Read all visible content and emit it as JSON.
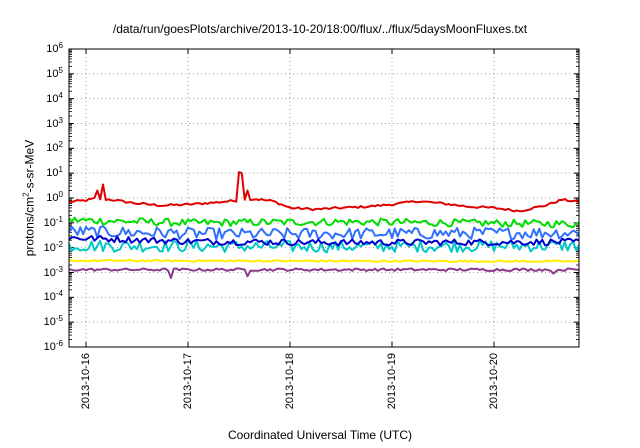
{
  "chart_data": {
    "type": "line",
    "title": "/data/run/goesPlots/archive/2013-10-20/18:00/flux/../flux/5daysMoonFluxes.txt",
    "xlabel": "Coordinated Universal Time (UTC)",
    "ylabel_prefix": "protons/cm",
    "ylabel_sup": "2",
    "ylabel_suffix": "-s-sr-MeV",
    "y_scale": "log",
    "ylim": [
      1e-06,
      1000000.0
    ],
    "xlim": [
      "2013-10-15T20:00",
      "2013-10-20T20:00"
    ],
    "grid": true,
    "legend": "none",
    "y_ticks": [
      {
        "base": "10",
        "exp": "-6",
        "value": 1e-06
      },
      {
        "base": "10",
        "exp": "-5",
        "value": 1e-05
      },
      {
        "base": "10",
        "exp": "-4",
        "value": 0.0001
      },
      {
        "base": "10",
        "exp": "-3",
        "value": 0.001
      },
      {
        "base": "10",
        "exp": "-2",
        "value": 0.01
      },
      {
        "base": "10",
        "exp": "-1",
        "value": 0.1
      },
      {
        "base": "10",
        "exp": "0",
        "value": 1
      },
      {
        "base": "10",
        "exp": "1",
        "value": 10
      },
      {
        "base": "10",
        "exp": "2",
        "value": 100
      },
      {
        "base": "10",
        "exp": "3",
        "value": 1000
      },
      {
        "base": "10",
        "exp": "4",
        "value": 10000
      },
      {
        "base": "10",
        "exp": "5",
        "value": 100000
      },
      {
        "base": "10",
        "exp": "6",
        "value": 1000000
      }
    ],
    "x_ticks": [
      "2013-10-16",
      "2013-10-17",
      "2013-10-18",
      "2013-10-19",
      "2013-10-20"
    ],
    "series": [
      {
        "color": "#e00000",
        "width": 2,
        "baseline": 0.55,
        "noise": 0.1,
        "spikes": [
          [
            "2013-10-16T02:30",
            2.0
          ],
          [
            "2013-10-16T04:00",
            3.5
          ],
          [
            "2013-10-16T07:00",
            4.0
          ],
          [
            "2013-10-17T11:00",
            4.0
          ],
          [
            "2013-10-17T11:45",
            11.0
          ],
          [
            "2013-10-17T12:30",
            10.0
          ],
          [
            "2013-10-17T14:00",
            2.0
          ]
        ],
        "points": [
          [
            "2013-10-15T20:00",
            0.7
          ],
          [
            "2013-10-16T00:00",
            0.8
          ],
          [
            "2013-10-16T02:00",
            0.95
          ],
          [
            "2013-10-16T06:00",
            0.85
          ],
          [
            "2013-10-16T12:00",
            0.6
          ],
          [
            "2013-10-16T18:00",
            0.5
          ],
          [
            "2013-10-17T00:00",
            0.55
          ],
          [
            "2013-10-17T06:00",
            0.65
          ],
          [
            "2013-10-17T10:00",
            0.75
          ],
          [
            "2013-10-17T16:00",
            0.9
          ],
          [
            "2013-10-17T20:00",
            0.75
          ],
          [
            "2013-10-18T00:00",
            0.4
          ],
          [
            "2013-10-18T06:00",
            0.35
          ],
          [
            "2013-10-18T12:00",
            0.4
          ],
          [
            "2013-10-18T18:00",
            0.45
          ],
          [
            "2013-10-19T00:00",
            0.55
          ],
          [
            "2013-10-19T06:00",
            0.75
          ],
          [
            "2013-10-19T12:00",
            0.6
          ],
          [
            "2013-10-19T18:00",
            0.45
          ],
          [
            "2013-10-20T00:00",
            0.4
          ],
          [
            "2013-10-20T06:00",
            0.3
          ],
          [
            "2013-10-20T12:00",
            0.5
          ],
          [
            "2013-10-20T16:00",
            0.85
          ],
          [
            "2013-10-20T20:00",
            0.7
          ]
        ]
      },
      {
        "color": "#00dd00",
        "width": 2,
        "baseline": 0.12,
        "noise": 0.35,
        "spikes": [],
        "points": [
          [
            "2013-10-15T20:00",
            0.13
          ],
          [
            "2013-10-17T00:00",
            0.1
          ],
          [
            "2013-10-18T12:00",
            0.11
          ],
          [
            "2013-10-20T20:00",
            0.09
          ]
        ]
      },
      {
        "color": "#00c8c8",
        "width": 2,
        "baseline": 0.012,
        "noise": 0.55,
        "spikes": [],
        "points": [
          [
            "2013-10-15T20:00",
            0.012
          ],
          [
            "2013-10-18T00:00",
            0.011
          ],
          [
            "2013-10-20T20:00",
            0.012
          ]
        ]
      },
      {
        "color": "#3070ff",
        "width": 2,
        "baseline": 0.04,
        "noise": 0.55,
        "spikes": [],
        "points": [
          [
            "2013-10-15T20:00",
            0.045
          ],
          [
            "2013-10-17T12:00",
            0.035
          ],
          [
            "2013-10-20T20:00",
            0.04
          ]
        ]
      },
      {
        "color": "#0000cc",
        "width": 2,
        "baseline": 0.018,
        "noise": 0.3,
        "spikes": [],
        "points": [
          [
            "2013-10-15T20:00",
            0.025
          ],
          [
            "2013-10-17T00:00",
            0.018
          ],
          [
            "2013-10-18T12:00",
            0.016
          ],
          [
            "2013-10-20T20:00",
            0.017
          ]
        ]
      },
      {
        "color": "#ffee00",
        "width": 2,
        "baseline": 0.003,
        "noise": 0.08,
        "spikes": [],
        "points": [
          [
            "2013-10-15T20:00",
            0.003
          ],
          [
            "2013-10-20T20:00",
            0.0028
          ]
        ]
      },
      {
        "color": "#8b3a8b",
        "width": 2,
        "baseline": 0.0014,
        "noise": 0.12,
        "spikes": [
          [
            "2013-10-16T20:00",
            0.0006
          ],
          [
            "2013-10-17T14:00",
            0.0007
          ],
          [
            "2013-10-19T09:00",
            0.0007
          ],
          [
            "2013-10-20T14:00",
            0.0009
          ]
        ],
        "points": [
          [
            "2013-10-15T20:00",
            0.0013
          ],
          [
            "2013-10-20T20:00",
            0.0013
          ]
        ]
      }
    ]
  }
}
